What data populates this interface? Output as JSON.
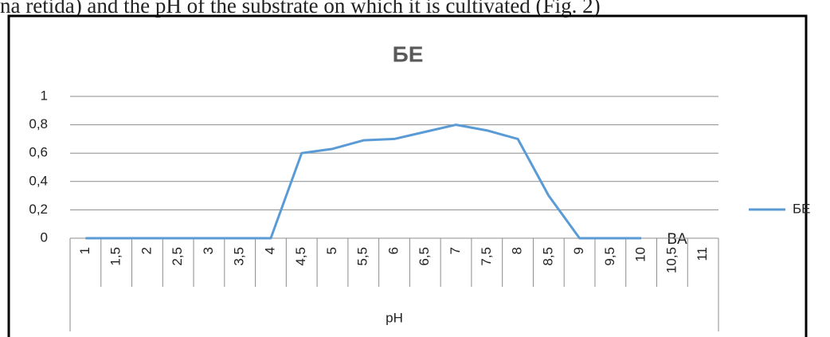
{
  "caption": "na retida) and the pH of the substrate on which it is cultivated (Fig. 2)",
  "chart_data": {
    "type": "line",
    "title": "БЕ",
    "categories": [
      "1",
      "1,5",
      "2",
      "2,5",
      "3",
      "3,5",
      "4",
      "4,5",
      "5",
      "5,5",
      "6",
      "6,5",
      "7",
      "7,5",
      "8",
      "8,5",
      "9",
      "9,5",
      "10",
      "10,5",
      "11"
    ],
    "series": [
      {
        "name": "БЕ",
        "color": "#5b9bd5",
        "values": [
          0,
          0,
          0,
          0,
          0,
          0,
          0,
          0.6,
          0.63,
          0.69,
          0.7,
          0.75,
          0.8,
          0.76,
          0.7,
          0.3,
          0,
          0,
          0,
          null,
          null
        ]
      }
    ],
    "ylim": [
      0,
      1
    ],
    "yticks": [
      0,
      {
        "value": 0.2,
        "label": "0,2"
      },
      {
        "value": 0.4,
        "label": "0,4"
      },
      {
        "value": 0.6,
        "label": "0,6"
      },
      {
        "value": 0.8,
        "label": "0,8"
      },
      1
    ],
    "grid": true,
    "legend": "right",
    "x_label": "pH",
    "annotation": "BA"
  }
}
